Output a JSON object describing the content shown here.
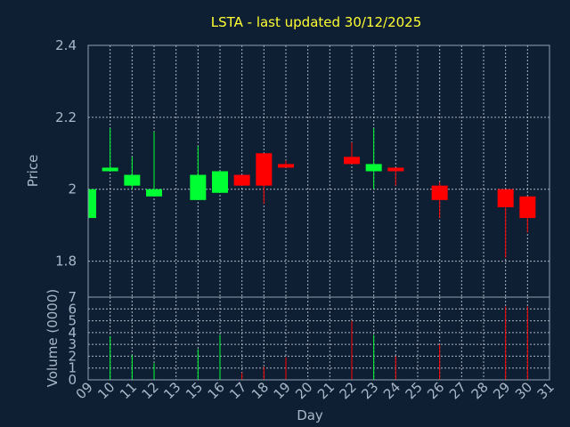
{
  "chart_data": {
    "type": "candlestick",
    "title": "LSTA - last updated 30/12/2025",
    "xlabel": "Day",
    "price_panel": {
      "ylabel": "Price",
      "ylim": [
        1.7,
        2.4
      ],
      "yticks": [
        "1.8",
        "2",
        "2.2",
        "2.4"
      ],
      "grid": true
    },
    "volume_panel": {
      "ylabel": "Volume (0000)",
      "ylim": [
        0,
        7
      ],
      "yticks": [
        "0",
        "1",
        "2",
        "3",
        "4",
        "5",
        "6",
        "7"
      ],
      "grid": true
    },
    "x_ticks": [
      "09",
      "10",
      "11",
      "12",
      "13",
      "15",
      "16",
      "17",
      "18",
      "19",
      "20",
      "21",
      "22",
      "23",
      "24",
      "25",
      "26",
      "27",
      "28",
      "29",
      "30",
      "31"
    ],
    "colors": {
      "up": "#00ff33",
      "down": "#ff0000",
      "title": "#ffff33",
      "background": "#0f1f33"
    },
    "candles": [
      {
        "day": "09",
        "open": 1.92,
        "close": 2.0,
        "high": 2.0,
        "low": 1.92,
        "volume": 0.0
      },
      {
        "day": "10",
        "open": 2.05,
        "close": 2.06,
        "high": 2.17,
        "low": 2.05,
        "volume": 3.7
      },
      {
        "day": "11",
        "open": 2.01,
        "close": 2.04,
        "high": 2.09,
        "low": 2.0,
        "volume": 2.1
      },
      {
        "day": "12",
        "open": 1.98,
        "close": 2.0,
        "high": 2.16,
        "low": 1.98,
        "volume": 1.4
      },
      {
        "day": "15",
        "open": 1.97,
        "close": 2.04,
        "high": 2.12,
        "low": 1.97,
        "volume": 2.6
      },
      {
        "day": "16",
        "open": 1.99,
        "close": 2.05,
        "high": 2.05,
        "low": 1.99,
        "volume": 3.8
      },
      {
        "day": "17",
        "open": 2.04,
        "close": 2.01,
        "high": 2.04,
        "low": 2.01,
        "volume": 0.6
      },
      {
        "day": "18",
        "open": 2.1,
        "close": 2.01,
        "high": 2.1,
        "low": 1.96,
        "volume": 1.1
      },
      {
        "day": "19",
        "open": 2.07,
        "close": 2.06,
        "high": 2.08,
        "low": 2.06,
        "volume": 1.9
      },
      {
        "day": "22",
        "open": 2.09,
        "close": 2.07,
        "high": 2.13,
        "low": 2.07,
        "volume": 5.0
      },
      {
        "day": "23",
        "open": 2.05,
        "close": 2.07,
        "high": 2.17,
        "low": 2.0,
        "volume": 3.8
      },
      {
        "day": "24",
        "open": 2.06,
        "close": 2.05,
        "high": 2.06,
        "low": 2.01,
        "volume": 2.0
      },
      {
        "day": "26",
        "open": 2.01,
        "close": 1.97,
        "high": 2.02,
        "low": 1.92,
        "volume": 3.0
      },
      {
        "day": "29",
        "open": 2.0,
        "close": 1.95,
        "high": 2.0,
        "low": 1.81,
        "volume": 6.2
      },
      {
        "day": "30",
        "open": 1.98,
        "close": 1.92,
        "high": 1.98,
        "low": 1.88,
        "volume": 6.2
      }
    ]
  }
}
